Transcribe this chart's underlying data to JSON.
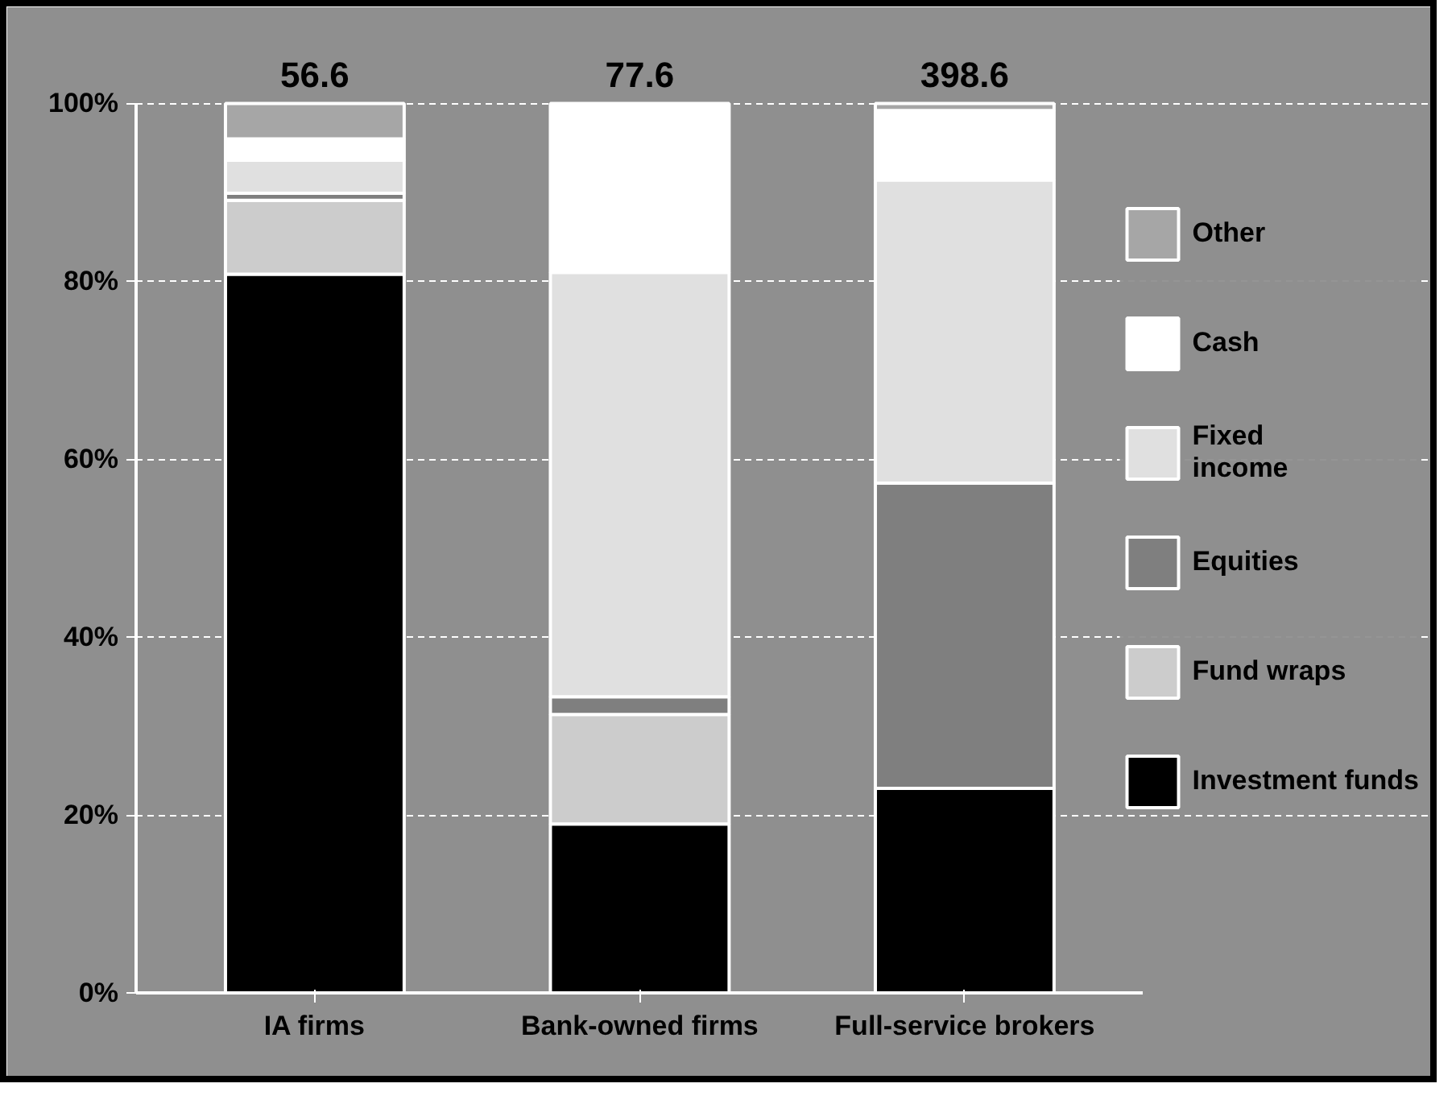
{
  "chart_data": {
    "type": "bar",
    "stacked": true,
    "categories": [
      "IA firms",
      "Bank-owned firms",
      "Full-service brokers"
    ],
    "series": [
      {
        "name": "Investment funds",
        "color": "#000000",
        "values": [
          80.8,
          19.0,
          23.0
        ]
      },
      {
        "name": "Fund wraps",
        "color": "#cccccc",
        "values": [
          8.3,
          12.3,
          0
        ]
      },
      {
        "name": "Equities",
        "color": "#7f7f7f",
        "values": [
          0.8,
          2.0,
          34.3
        ]
      },
      {
        "name": "Fixed\nincome",
        "color": "#e0e0e0",
        "values": [
          3.7,
          47.7,
          34.1
        ]
      },
      {
        "name": "Cash",
        "color": "#ffffff",
        "values": [
          2.4,
          19.0,
          7.8
        ]
      },
      {
        "name": "Other",
        "color": "#a6a6a6",
        "values": [
          4.0,
          0,
          0.8
        ]
      }
    ],
    "annotations": [
      "56.6",
      "77.6",
      "398.6"
    ],
    "ylim": [
      0,
      100
    ],
    "yticks": [
      {
        "value": 0,
        "label": "0%"
      },
      {
        "value": 20,
        "label": "20%"
      },
      {
        "value": 40,
        "label": "40%"
      },
      {
        "value": 60,
        "label": "60%"
      },
      {
        "value": 80,
        "label": "80%"
      },
      {
        "value": 100,
        "label": "100%"
      }
    ],
    "grid": "y",
    "legend": "right"
  }
}
